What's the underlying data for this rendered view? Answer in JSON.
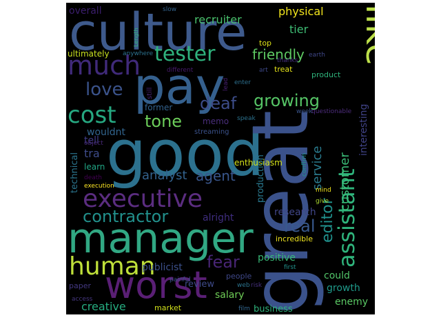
{
  "words": [
    {
      "text": "culture",
      "color": "#3e5a8c"
    },
    {
      "text": "like",
      "color": "#bde04a"
    },
    {
      "text": "pay",
      "color": "#35608d"
    },
    {
      "text": "good",
      "color": "#2c718e"
    },
    {
      "text": "great",
      "color": "#3b528b"
    },
    {
      "text": "manager",
      "color": "#31a883"
    },
    {
      "text": "worst",
      "color": "#5a1f75"
    },
    {
      "text": "human",
      "color": "#bfe03a"
    },
    {
      "text": "executive",
      "color": "#5b2d80"
    },
    {
      "text": "contractor",
      "color": "#22908c"
    },
    {
      "text": "much",
      "color": "#402a7a"
    },
    {
      "text": "tester",
      "color": "#2fb17c"
    },
    {
      "text": "cost",
      "color": "#26a881"
    },
    {
      "text": "assistant",
      "color": "#2fb47c"
    },
    {
      "text": "editor",
      "color": "#20908c"
    },
    {
      "text": "growing",
      "color": "#56c566"
    },
    {
      "text": "love",
      "color": "#3b538b"
    },
    {
      "text": "deaf",
      "color": "#3d4d8a"
    },
    {
      "text": "tone",
      "color": "#6ccd5a"
    },
    {
      "text": "friendly",
      "color": "#5ec962"
    },
    {
      "text": "customer",
      "color": "#3aba76"
    },
    {
      "text": "service",
      "color": "#2a7b8e"
    },
    {
      "text": "real",
      "color": "#38588c"
    },
    {
      "text": "fear",
      "color": "#482575"
    },
    {
      "text": "agent",
      "color": "#39568c"
    },
    {
      "text": "analyst",
      "color": "#33628d"
    },
    {
      "text": "recruiter",
      "color": "#4ac16d"
    },
    {
      "text": "tier",
      "color": "#3ebc74"
    },
    {
      "text": "physical",
      "color": "#f2e51d"
    },
    {
      "text": "overall",
      "color": "#3b1e6d"
    },
    {
      "text": "interesting",
      "color": "#404387"
    },
    {
      "text": "ultimately",
      "color": "#c8e020"
    },
    {
      "text": "anywhere",
      "color": "#2c728e"
    },
    {
      "text": "different",
      "color": "#481b6d"
    },
    {
      "text": "wouldnt",
      "color": "#32658e"
    },
    {
      "text": "memo",
      "color": "#4b2f7d"
    },
    {
      "text": "tell",
      "color": "#3f3c85"
    },
    {
      "text": "tra",
      "color": "#3e4c8a"
    },
    {
      "text": "technical",
      "color": "#2b758e"
    },
    {
      "text": "learn",
      "color": "#21a685"
    },
    {
      "text": "execution",
      "color": "#fde725"
    },
    {
      "text": "death",
      "color": "#440154"
    },
    {
      "text": "object",
      "color": "#482878"
    },
    {
      "text": "streaming",
      "color": "#3b528b"
    },
    {
      "text": "enthusiasm",
      "color": "#d5e21a"
    },
    {
      "text": "production",
      "color": "#29788e"
    },
    {
      "text": "research",
      "color": "#404688"
    },
    {
      "text": "alright",
      "color": "#3f2d7f"
    },
    {
      "text": "positive",
      "color": "#38b977"
    },
    {
      "text": "incredible",
      "color": "#f0e51f"
    },
    {
      "text": "could",
      "color": "#52c569"
    },
    {
      "text": "growth",
      "color": "#1f9a8a"
    },
    {
      "text": "enemy",
      "color": "#5ac864"
    },
    {
      "text": "salary",
      "color": "#70cf57"
    },
    {
      "text": "business",
      "color": "#2fb47c"
    },
    {
      "text": "publicist",
      "color": "#3c508b"
    },
    {
      "text": "review",
      "color": "#3e4a89"
    },
    {
      "text": "creative",
      "color": "#26ad81"
    },
    {
      "text": "market",
      "color": "#d2e21b"
    },
    {
      "text": "paper",
      "color": "#443983"
    },
    {
      "text": "access",
      "color": "#45377f"
    },
    {
      "text": "painful",
      "color": "#3b528b"
    },
    {
      "text": "people",
      "color": "#3f4889"
    },
    {
      "text": "web",
      "color": "#2b748e"
    },
    {
      "text": "risk",
      "color": "#46307e"
    },
    {
      "text": "film",
      "color": "#31668e"
    },
    {
      "text": "first",
      "color": "#21918c"
    },
    {
      "text": "mind",
      "color": "#f1e51d"
    },
    {
      "text": "give",
      "color": "#addc30"
    },
    {
      "text": "top",
      "color": "#dde318"
    },
    {
      "text": "thanks",
      "color": "#46317e"
    },
    {
      "text": "earth",
      "color": "#3f4788"
    },
    {
      "text": "slow",
      "color": "#33638d"
    },
    {
      "text": "Length",
      "color": "#35b779"
    },
    {
      "text": "still",
      "color": "#482475"
    },
    {
      "text": "lead",
      "color": "#482071"
    },
    {
      "text": "art",
      "color": "#3e4989"
    },
    {
      "text": "treat",
      "color": "#e7e419"
    },
    {
      "text": "enter",
      "color": "#2d708e"
    },
    {
      "text": "product",
      "color": "#2fb47c"
    },
    {
      "text": "former",
      "color": "#33628d"
    },
    {
      "text": "week",
      "color": "#3a548c"
    },
    {
      "text": "questionable",
      "color": "#4e2d7e"
    },
    {
      "text": "confirm",
      "color": "#1f958b"
    },
    {
      "text": "speak",
      "color": "#2c728e"
    }
  ]
}
